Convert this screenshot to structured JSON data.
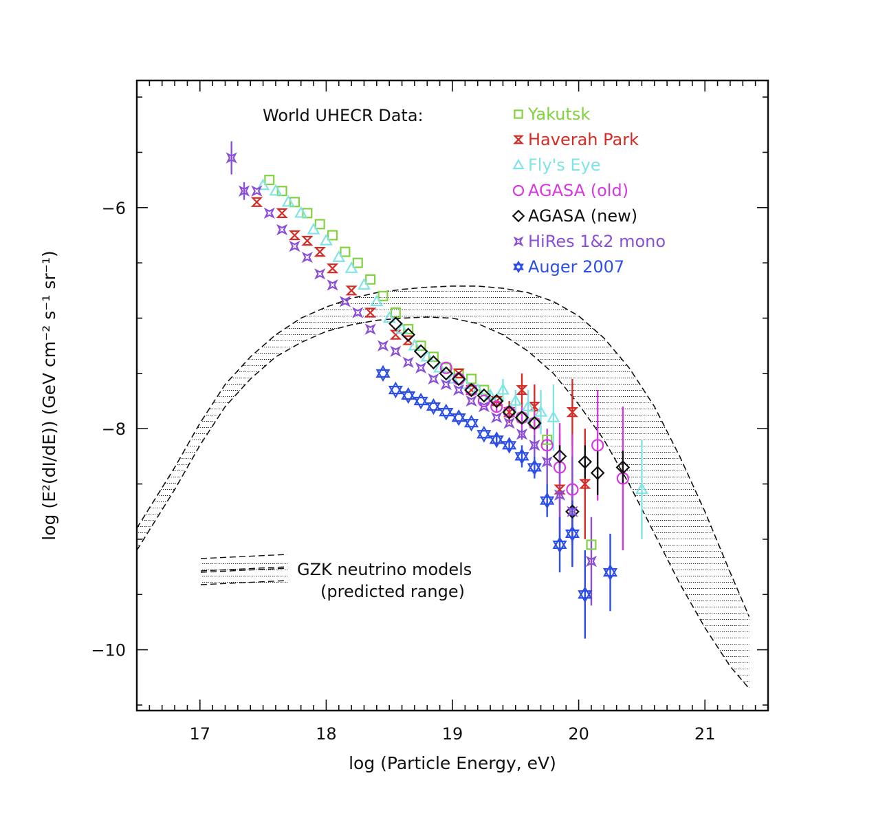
{
  "chart_data": {
    "type": "scatter",
    "title": "World UHECR Data:",
    "xlabel": "log (Particle Energy, eV)",
    "ylabel": "log (E²(dI/dE)) (GeV cm⁻² s⁻¹ sr⁻¹)",
    "xlim": [
      16.5,
      21.5
    ],
    "ylim": [
      -10.55,
      -4.85
    ],
    "x_ticks": [
      {
        "value": 17,
        "label": "17"
      },
      {
        "value": 18,
        "label": "18"
      },
      {
        "value": 19,
        "label": "19"
      },
      {
        "value": 20,
        "label": "20"
      },
      {
        "value": 21,
        "label": "21"
      }
    ],
    "y_ticks": [
      {
        "value": -6,
        "label": "−6"
      },
      {
        "value": -8,
        "label": "−8"
      },
      {
        "value": -10,
        "label": "−10"
      }
    ],
    "legend_position": "top-right",
    "series": [
      {
        "name": "Yakutsk",
        "color": "#7fd33c",
        "marker": "square",
        "legend_symbol": "□",
        "points": [
          [
            17.55,
            -5.75
          ],
          [
            17.65,
            -5.85
          ],
          [
            17.75,
            -5.95
          ],
          [
            17.85,
            -6.05
          ],
          [
            17.95,
            -6.15
          ],
          [
            18.05,
            -6.25
          ],
          [
            18.15,
            -6.4
          ],
          [
            18.25,
            -6.5
          ],
          [
            18.35,
            -6.65
          ],
          [
            18.45,
            -6.8
          ],
          [
            18.55,
            -6.95
          ],
          [
            18.65,
            -7.1
          ],
          [
            18.75,
            -7.25
          ],
          [
            18.85,
            -7.35
          ],
          [
            18.95,
            -7.45
          ],
          [
            19.05,
            -7.5
          ],
          [
            19.15,
            -7.55
          ],
          [
            19.25,
            -7.65
          ],
          [
            19.35,
            -7.75
          ],
          [
            19.45,
            -7.85
          ],
          [
            19.55,
            -7.9
          ],
          [
            19.65,
            -7.95
          ],
          [
            19.75,
            -8.1
          ],
          [
            20.1,
            -9.05
          ]
        ],
        "err": [
          0,
          0,
          0,
          0,
          0,
          0,
          0,
          0,
          0,
          0,
          0,
          0,
          0,
          0,
          0,
          0,
          0,
          0,
          0,
          0,
          0,
          0,
          0,
          0
        ]
      },
      {
        "name": "Haverah Park",
        "color": "#d62b25",
        "marker": "bowtie",
        "legend_symbol": "⧖",
        "points": [
          [
            17.45,
            -5.95
          ],
          [
            17.65,
            -6.05
          ],
          [
            17.75,
            -6.25
          ],
          [
            17.85,
            -6.3
          ],
          [
            17.95,
            -6.4
          ],
          [
            18.05,
            -6.55
          ],
          [
            18.2,
            -6.75
          ],
          [
            18.35,
            -6.95
          ],
          [
            18.55,
            -7.15
          ],
          [
            18.65,
            -7.2
          ],
          [
            19.05,
            -7.5
          ],
          [
            19.15,
            -7.65
          ],
          [
            19.35,
            -7.75
          ],
          [
            19.45,
            -7.85
          ],
          [
            19.55,
            -7.65
          ],
          [
            19.65,
            -7.8
          ],
          [
            19.85,
            -8.55
          ],
          [
            19.95,
            -7.85
          ],
          [
            20.05,
            -8.5
          ]
        ],
        "err": [
          0,
          0,
          0,
          0,
          0,
          0,
          0,
          0,
          0,
          0,
          0,
          0,
          0,
          0.1,
          0.15,
          0.2,
          0.5,
          0.3,
          0.5
        ]
      },
      {
        "name": "Fly's Eye",
        "color": "#7fe3e8",
        "marker": "triangle",
        "legend_symbol": "△",
        "points": [
          [
            17.5,
            -5.8
          ],
          [
            17.6,
            -5.85
          ],
          [
            17.7,
            -5.95
          ],
          [
            17.8,
            -6.05
          ],
          [
            17.9,
            -6.2
          ],
          [
            18.0,
            -6.3
          ],
          [
            18.1,
            -6.45
          ],
          [
            18.2,
            -6.55
          ],
          [
            18.3,
            -6.7
          ],
          [
            18.4,
            -6.85
          ],
          [
            18.5,
            -7.0
          ],
          [
            18.6,
            -7.1
          ],
          [
            18.7,
            -7.25
          ],
          [
            18.8,
            -7.35
          ],
          [
            18.9,
            -7.45
          ],
          [
            19.0,
            -7.55
          ],
          [
            19.1,
            -7.6
          ],
          [
            19.2,
            -7.65
          ],
          [
            19.3,
            -7.7
          ],
          [
            19.4,
            -7.65
          ],
          [
            19.5,
            -7.75
          ],
          [
            19.6,
            -7.8
          ],
          [
            19.7,
            -7.85
          ],
          [
            19.8,
            -7.9
          ],
          [
            20.5,
            -8.55
          ]
        ],
        "err": [
          0,
          0,
          0,
          0,
          0,
          0,
          0,
          0,
          0,
          0,
          0,
          0,
          0,
          0,
          0,
          0,
          0,
          0,
          0.05,
          0.1,
          0.1,
          0.15,
          0.2,
          0.3,
          0.45
        ]
      },
      {
        "name": "AGASA (old)",
        "color": "#d639e0",
        "marker": "circle",
        "legend_symbol": "○",
        "points": [
          [
            18.95,
            -7.45
          ],
          [
            19.05,
            -7.55
          ],
          [
            19.15,
            -7.65
          ],
          [
            19.25,
            -7.75
          ],
          [
            19.35,
            -7.8
          ],
          [
            19.45,
            -7.85
          ],
          [
            19.55,
            -7.9
          ],
          [
            19.65,
            -7.95
          ],
          [
            19.75,
            -8.15
          ],
          [
            19.85,
            -8.35
          ],
          [
            19.95,
            -8.55
          ],
          [
            20.15,
            -8.15
          ],
          [
            20.35,
            -8.45
          ]
        ],
        "err": [
          0,
          0,
          0,
          0,
          0.05,
          0.05,
          0.1,
          0.1,
          0.15,
          0.4,
          0.5,
          0.5,
          0.65
        ]
      },
      {
        "name": "AGASA (new)",
        "color": "#111111",
        "marker": "diamond",
        "legend_symbol": "◇",
        "points": [
          [
            18.55,
            -7.05
          ],
          [
            18.65,
            -7.15
          ],
          [
            18.75,
            -7.3
          ],
          [
            18.85,
            -7.4
          ],
          [
            18.95,
            -7.5
          ],
          [
            19.05,
            -7.55
          ],
          [
            19.15,
            -7.65
          ],
          [
            19.25,
            -7.7
          ],
          [
            19.35,
            -7.75
          ],
          [
            19.45,
            -7.85
          ],
          [
            19.55,
            -7.9
          ],
          [
            19.65,
            -7.95
          ],
          [
            19.85,
            -8.25
          ],
          [
            19.95,
            -8.75
          ],
          [
            20.05,
            -8.3
          ],
          [
            20.15,
            -8.4
          ],
          [
            20.35,
            -8.35
          ]
        ],
        "err": [
          0,
          0,
          0,
          0,
          0,
          0,
          0,
          0,
          0,
          0,
          0,
          0,
          0.1,
          0.2,
          0.15,
          0.2,
          0.15
        ]
      },
      {
        "name": "HiRes 1&2 mono",
        "color": "#8a4fd6",
        "marker": "star4",
        "legend_symbol": "✦",
        "points": [
          [
            17.25,
            -5.55
          ],
          [
            17.35,
            -5.85
          ],
          [
            17.45,
            -5.85
          ],
          [
            17.55,
            -6.05
          ],
          [
            17.65,
            -6.2
          ],
          [
            17.75,
            -6.35
          ],
          [
            17.85,
            -6.45
          ],
          [
            17.95,
            -6.6
          ],
          [
            18.05,
            -6.7
          ],
          [
            18.15,
            -6.85
          ],
          [
            18.25,
            -6.95
          ],
          [
            18.35,
            -7.1
          ],
          [
            18.45,
            -7.25
          ],
          [
            18.55,
            -7.3
          ],
          [
            18.65,
            -7.4
          ],
          [
            18.75,
            -7.45
          ],
          [
            18.85,
            -7.55
          ],
          [
            18.95,
            -7.6
          ],
          [
            19.05,
            -7.65
          ],
          [
            19.15,
            -7.75
          ],
          [
            19.25,
            -7.8
          ],
          [
            19.35,
            -7.9
          ],
          [
            19.45,
            -7.95
          ],
          [
            19.55,
            -8.05
          ],
          [
            19.65,
            -8.15
          ],
          [
            19.75,
            -8.3
          ],
          [
            19.85,
            -8.6
          ],
          [
            19.95,
            -8.75
          ],
          [
            20.1,
            -9.2
          ]
        ],
        "err": [
          0.15,
          0.08,
          0,
          0,
          0,
          0,
          0,
          0,
          0,
          0,
          0,
          0,
          0,
          0,
          0,
          0,
          0,
          0,
          0,
          0,
          0,
          0,
          0,
          0.05,
          0.1,
          0.2,
          0.4,
          0.5,
          0.4
        ]
      },
      {
        "name": "Auger 2007",
        "color": "#2c4ee8",
        "marker": "star6",
        "legend_symbol": "✡",
        "points": [
          [
            18.45,
            -7.5
          ],
          [
            18.55,
            -7.65
          ],
          [
            18.65,
            -7.7
          ],
          [
            18.75,
            -7.75
          ],
          [
            18.85,
            -7.8
          ],
          [
            18.95,
            -7.85
          ],
          [
            19.05,
            -7.9
          ],
          [
            19.15,
            -7.95
          ],
          [
            19.25,
            -8.05
          ],
          [
            19.35,
            -8.1
          ],
          [
            19.45,
            -8.15
          ],
          [
            19.55,
            -8.25
          ],
          [
            19.65,
            -8.35
          ],
          [
            19.75,
            -8.65
          ],
          [
            19.85,
            -9.05
          ],
          [
            19.95,
            -8.95
          ],
          [
            20.05,
            -9.5
          ],
          [
            20.25,
            -9.3
          ]
        ],
        "err": [
          0,
          0,
          0,
          0,
          0,
          0,
          0,
          0,
          0,
          0.05,
          0.05,
          0.1,
          0.1,
          0.15,
          0.25,
          0.3,
          0.4,
          0.35
        ]
      }
    ],
    "band": {
      "name": "GZK neutrino models (predicted range)",
      "lower": [
        [
          16.5,
          -9.1
        ],
        [
          16.8,
          -8.55
        ],
        [
          17.0,
          -8.15
        ],
        [
          17.2,
          -7.8
        ],
        [
          17.4,
          -7.55
        ],
        [
          17.6,
          -7.35
        ],
        [
          17.8,
          -7.22
        ],
        [
          18.0,
          -7.12
        ],
        [
          18.2,
          -7.06
        ],
        [
          18.4,
          -7.02
        ],
        [
          18.6,
          -7.0
        ],
        [
          18.8,
          -6.99
        ],
        [
          19.0,
          -7.0
        ],
        [
          19.2,
          -7.05
        ],
        [
          19.4,
          -7.15
        ],
        [
          19.6,
          -7.3
        ],
        [
          19.8,
          -7.5
        ],
        [
          20.0,
          -7.78
        ],
        [
          20.2,
          -8.1
        ],
        [
          20.4,
          -8.5
        ],
        [
          20.6,
          -8.95
        ],
        [
          20.8,
          -9.4
        ],
        [
          21.0,
          -9.8
        ],
        [
          21.2,
          -10.15
        ],
        [
          21.35,
          -10.35
        ]
      ],
      "upper": [
        [
          16.5,
          -8.9
        ],
        [
          16.8,
          -8.35
        ],
        [
          17.0,
          -7.95
        ],
        [
          17.2,
          -7.6
        ],
        [
          17.4,
          -7.35
        ],
        [
          17.6,
          -7.15
        ],
        [
          17.8,
          -7.0
        ],
        [
          18.0,
          -6.9
        ],
        [
          18.2,
          -6.82
        ],
        [
          18.4,
          -6.77
        ],
        [
          18.6,
          -6.74
        ],
        [
          18.8,
          -6.72
        ],
        [
          19.0,
          -6.71
        ],
        [
          19.2,
          -6.71
        ],
        [
          19.4,
          -6.73
        ],
        [
          19.6,
          -6.77
        ],
        [
          19.8,
          -6.85
        ],
        [
          20.0,
          -6.98
        ],
        [
          20.2,
          -7.18
        ],
        [
          20.4,
          -7.45
        ],
        [
          20.6,
          -7.8
        ],
        [
          20.8,
          -8.25
        ],
        [
          21.0,
          -8.75
        ],
        [
          21.2,
          -9.3
        ],
        [
          21.35,
          -9.7
        ]
      ]
    },
    "annotation": {
      "line1": "GZK neutrino models",
      "line2": "(predicted range)"
    }
  }
}
